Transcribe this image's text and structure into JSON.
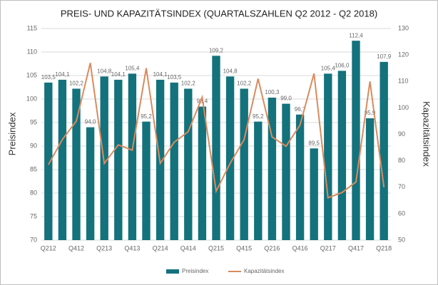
{
  "chart_data": {
    "type": "bar_line",
    "title": "PREIS- UND KAPAZITÄTSINDEX (QUARTALSZAHLEN Q2 2012 - Q2 2018)",
    "y_label": "Preisindex",
    "y2_label": "Kapazitätsindex",
    "categories": [
      "Q212",
      null,
      "Q412",
      null,
      "Q213",
      null,
      "Q413",
      null,
      "Q214",
      null,
      "Q414",
      null,
      "Q215",
      null,
      "Q415",
      null,
      "Q216",
      null,
      "Q416",
      null,
      "Q217",
      null,
      "Q417",
      null,
      "Q218"
    ],
    "series": [
      {
        "name": "Preisindex",
        "type": "bar",
        "color": "#13727c",
        "values": [
          103.5,
          104.1,
          102.2,
          94,
          104.8,
          104.1,
          105.4,
          95.2,
          104.1,
          103.5,
          102.2,
          98.4,
          109.2,
          104.8,
          102.2,
          95.2,
          100.3,
          99,
          96.7,
          89.5,
          105.4,
          106,
          112.4,
          95.9,
          107.9
        ],
        "value_labels": [
          "103,5",
          "104,1",
          "102,2",
          "94,0",
          "104,8",
          "104,1",
          "105,4",
          "95,2",
          "104,1",
          "103,5",
          "102,2",
          "98,4",
          "109,2",
          "104,8",
          "102,2",
          "95,2",
          "100,3",
          "99,0",
          "96,7",
          "89,5",
          "105,4",
          "106,0",
          "112,4",
          "95,9",
          "107,9"
        ]
      },
      {
        "name": "Kapazitätsindex",
        "type": "line",
        "axis": "y2",
        "color": "#d98b5f",
        "values": [
          78.5,
          88,
          95,
          117,
          79,
          86,
          84,
          115,
          79,
          87,
          91,
          104,
          68.5,
          79,
          88,
          111,
          89,
          85.5,
          93.5,
          113,
          66,
          68,
          72,
          110,
          70
        ]
      }
    ],
    "ylim": [
      70,
      115
    ],
    "yticks": [
      70,
      75,
      80,
      85,
      90,
      95,
      100,
      105,
      110,
      115
    ],
    "y2lim": [
      50,
      130
    ],
    "y2ticks": [
      50,
      60,
      70,
      80,
      90,
      100,
      110,
      120,
      130
    ],
    "grid": true,
    "legend": "bottom"
  }
}
